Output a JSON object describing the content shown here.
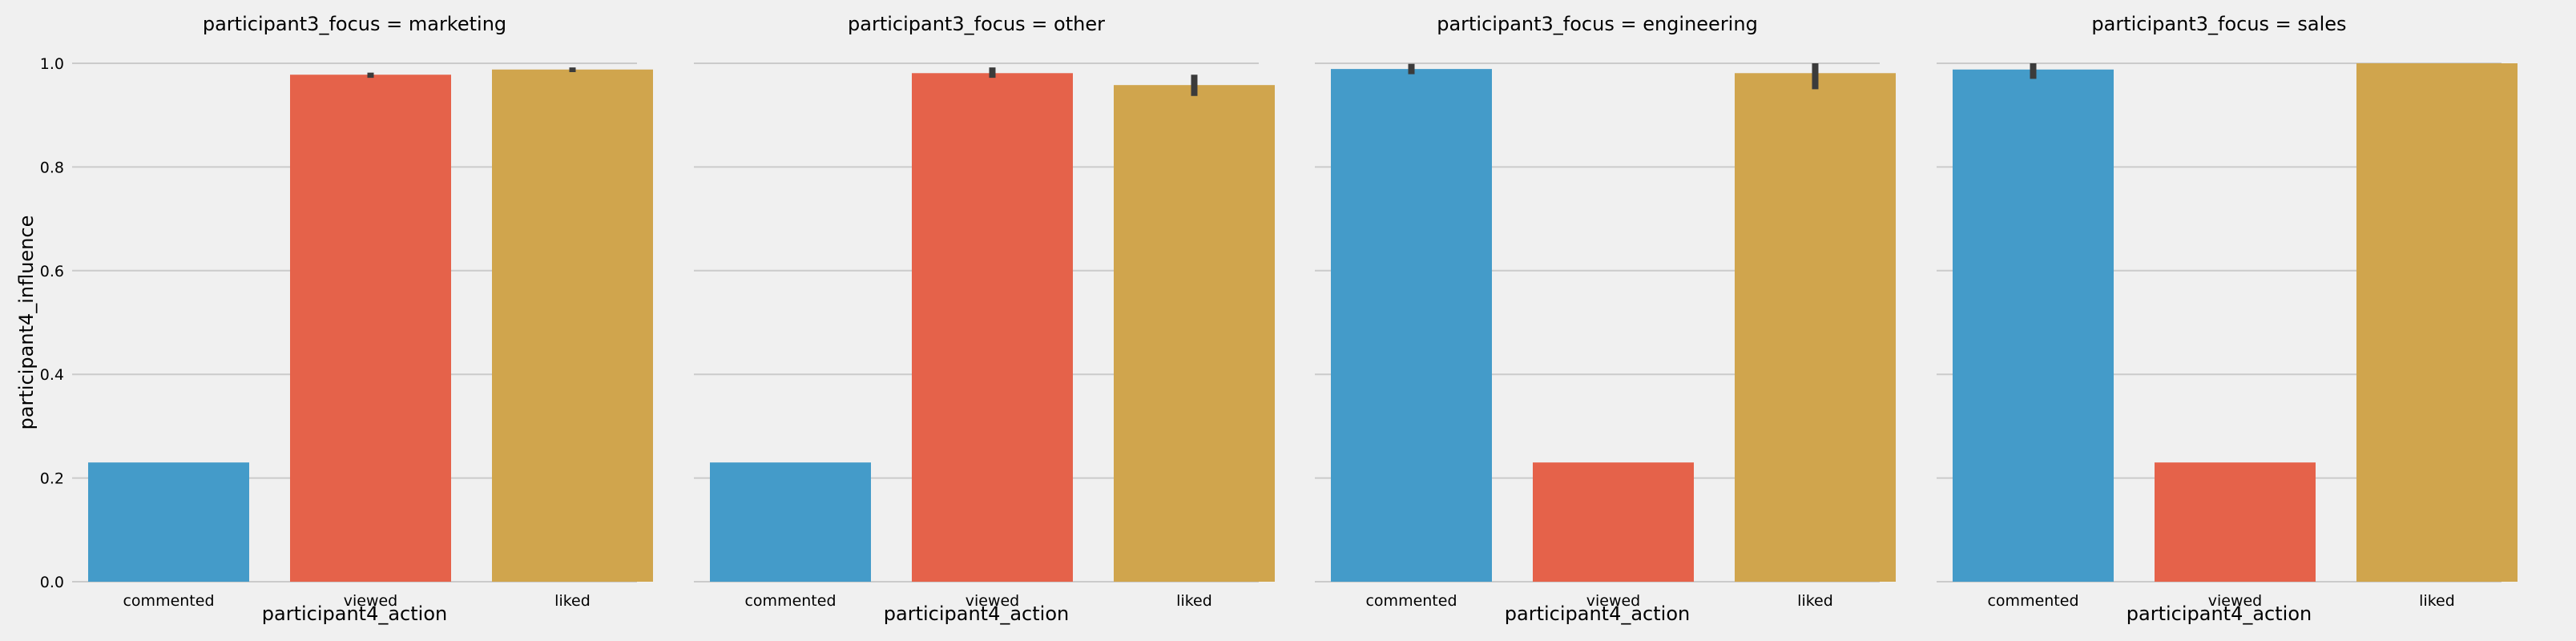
{
  "colors": {
    "background": "#f0f0f0",
    "grid": "#cbcbcb",
    "text": "#000000",
    "errorbar": "#3b3b3b",
    "commented": "#449bc9",
    "viewed": "#e5624a",
    "liked": "#d0a54d"
  },
  "chart_data": [
    {
      "type": "bar",
      "title": "participant3_focus = marketing",
      "xlabel": "participant4_action",
      "ylabel": "participant4_influence",
      "categories": [
        "commented",
        "viewed",
        "liked"
      ],
      "values": [
        0.23,
        0.978,
        0.988
      ],
      "error_low": [
        0.23,
        0.972,
        0.983
      ],
      "error_high": [
        0.23,
        0.982,
        0.992
      ],
      "bar_colors": [
        "#449bc9",
        "#e5624a",
        "#d0a54d"
      ],
      "ylim": [
        0,
        1.0
      ],
      "yticks": [
        "0.0",
        "0.2",
        "0.4",
        "0.6",
        "0.8",
        "1.0"
      ],
      "grid": true
    },
    {
      "type": "bar",
      "title": "participant3_focus = other",
      "xlabel": "participant4_action",
      "ylabel": "",
      "categories": [
        "commented",
        "viewed",
        "liked"
      ],
      "values": [
        0.23,
        0.981,
        0.958
      ],
      "error_low": [
        0.23,
        0.972,
        0.937
      ],
      "error_high": [
        0.23,
        0.992,
        0.978
      ],
      "bar_colors": [
        "#449bc9",
        "#e5624a",
        "#d0a54d"
      ],
      "ylim": [
        0,
        1.0
      ],
      "yticks": [
        "0.0",
        "0.2",
        "0.4",
        "0.6",
        "0.8",
        "1.0"
      ],
      "grid": true
    },
    {
      "type": "bar",
      "title": "participant3_focus = engineering",
      "xlabel": "participant4_action",
      "ylabel": "",
      "categories": [
        "commented",
        "viewed",
        "liked"
      ],
      "values": [
        0.989,
        0.23,
        0.981
      ],
      "error_low": [
        0.979,
        0.23,
        0.95
      ],
      "error_high": [
        0.999,
        0.23,
        1.0
      ],
      "bar_colors": [
        "#449bc9",
        "#e5624a",
        "#d0a54d"
      ],
      "ylim": [
        0,
        1.0
      ],
      "yticks": [
        "0.0",
        "0.2",
        "0.4",
        "0.6",
        "0.8",
        "1.0"
      ],
      "grid": true
    },
    {
      "type": "bar",
      "title": "participant3_focus = sales",
      "xlabel": "participant4_action",
      "ylabel": "",
      "categories": [
        "commented",
        "viewed",
        "liked"
      ],
      "values": [
        0.988,
        0.23,
        1.0
      ],
      "error_low": [
        0.97,
        0.23,
        1.0
      ],
      "error_high": [
        1.0,
        0.23,
        1.0
      ],
      "bar_colors": [
        "#449bc9",
        "#e5624a",
        "#d0a54d"
      ],
      "ylim": [
        0,
        1.0
      ],
      "yticks": [
        "0.0",
        "0.2",
        "0.4",
        "0.6",
        "0.8",
        "1.0"
      ],
      "grid": true
    }
  ]
}
